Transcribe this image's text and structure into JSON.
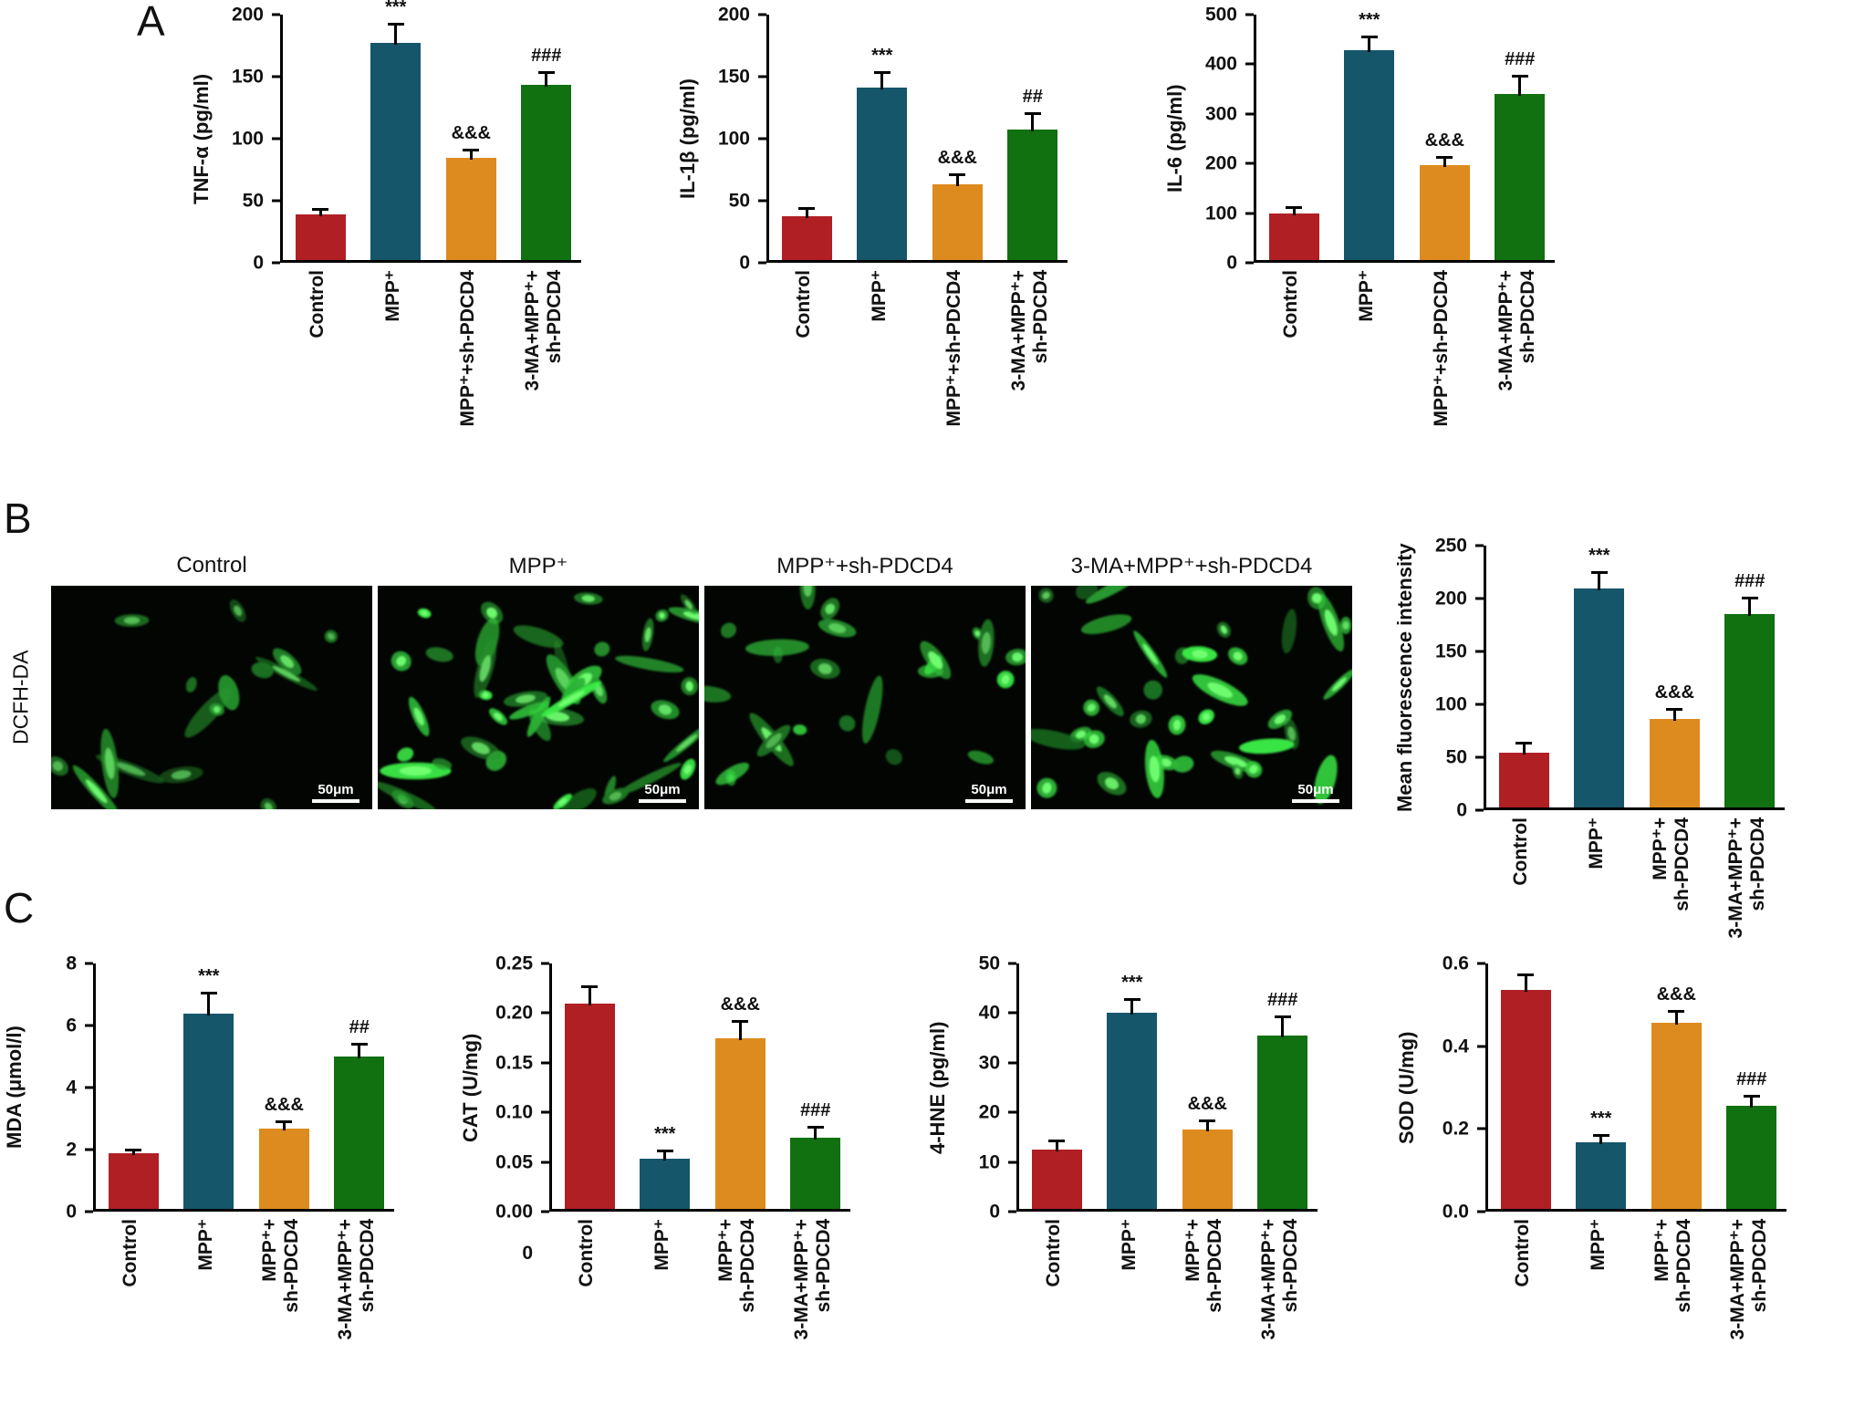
{
  "figure": {
    "panel_a_label": "A",
    "panel_b_label": "B",
    "panel_c_label": "C"
  },
  "panel_b": {
    "row_label": "DCFH-DA",
    "images": [
      {
        "label": "Control",
        "scale_bar": "50μm",
        "density": "sparse"
      },
      {
        "label": "MPP⁺",
        "scale_bar": "50μm",
        "density": "dense"
      },
      {
        "label": "MPP⁺+sh-PDCD4",
        "scale_bar": "50μm",
        "density": "moderate"
      },
      {
        "label": "3-MA+MPP⁺+sh-PDCD4",
        "scale_bar": "50μm",
        "density": "dense"
      }
    ]
  },
  "bar_colors": [
    "#b01f24",
    "#15566b",
    "#dd8b1e",
    "#11700f"
  ],
  "chart_data": [
    {
      "id": "tnf-alpha",
      "panel": "A",
      "type": "bar",
      "ylabel": "TNF-α (pg/ml)",
      "ymax": 200,
      "yticks": [
        "0",
        "50",
        "100",
        "150",
        "200"
      ],
      "categories": [
        "Control",
        "MPP⁺",
        "MPP⁺+sh-PDCD4",
        "3-MA+MPP⁺+\nsh-PDCD4"
      ],
      "values": [
        37,
        175,
        82,
        141
      ],
      "errors": [
        5,
        16,
        8,
        11
      ],
      "sig": [
        "",
        "***",
        "&&&",
        "###"
      ]
    },
    {
      "id": "il-1beta",
      "panel": "A",
      "type": "bar",
      "ylabel": "IL-1β (pg/ml)",
      "ymax": 200,
      "yticks": [
        "0",
        "50",
        "100",
        "150",
        "200"
      ],
      "categories": [
        "Control",
        "MPP⁺",
        "MPP⁺+sh-PDCD4",
        "3-MA+MPP⁺+\nsh-PDCD4"
      ],
      "values": [
        35,
        139,
        61,
        105
      ],
      "errors": [
        8,
        13,
        9,
        14
      ],
      "sig": [
        "",
        "***",
        "&&&",
        "##"
      ]
    },
    {
      "id": "il-6",
      "panel": "A",
      "type": "bar",
      "ylabel": "IL-6 (pg/ml)",
      "ymax": 500,
      "yticks": [
        "0",
        "100",
        "200",
        "300",
        "400",
        "500"
      ],
      "categories": [
        "Control",
        "MPP⁺",
        "MPP⁺+sh-PDCD4",
        "3-MA+MPP⁺+\nsh-PDCD4"
      ],
      "values": [
        93,
        422,
        192,
        335
      ],
      "errors": [
        15,
        30,
        18,
        38
      ],
      "sig": [
        "",
        "***",
        "&&&",
        "###"
      ]
    },
    {
      "id": "ros-mean-fluorescence",
      "panel": "B",
      "type": "bar",
      "ylabel": "Mean fluorescence intensity",
      "ymax": 250,
      "yticks": [
        "0",
        "50",
        "100",
        "150",
        "200",
        "250"
      ],
      "categories": [
        "Control",
        "MPP⁺",
        "MPP⁺+\nsh-PDCD4",
        "3-MA+MPP⁺+\nsh-PDCD4"
      ],
      "values": [
        52,
        207,
        84,
        183
      ],
      "errors": [
        10,
        16,
        10,
        16
      ],
      "sig": [
        "",
        "***",
        "&&&",
        "###"
      ]
    },
    {
      "id": "mda",
      "panel": "C",
      "type": "bar",
      "ylabel": "MDA (μmol/l)",
      "ymax": 8,
      "yticks": [
        "0",
        "2",
        "4",
        "6",
        "8"
      ],
      "categories": [
        "Control",
        "MPP⁺",
        "MPP⁺+\nsh-PDCD4",
        "3-MA+MPP⁺+\nsh-PDCD4"
      ],
      "values": [
        1.8,
        6.3,
        2.6,
        4.9
      ],
      "errors": [
        0.15,
        0.7,
        0.25,
        0.45
      ],
      "sig": [
        "",
        "***",
        "&&&",
        "##"
      ]
    },
    {
      "id": "cat",
      "panel": "C",
      "type": "bar",
      "ylabel": "CAT (U/mg)",
      "ymax": 0.25,
      "yticks": [
        "0.00",
        "0.05",
        "0.10",
        "0.15",
        "0.20",
        "0.25"
      ],
      "sub_label": "0",
      "categories": [
        "Control",
        "MPP⁺",
        "MPP⁺+\nsh-PDCD4",
        "3-MA+MPP⁺+\nsh-PDCD4"
      ],
      "values": [
        0.207,
        0.051,
        0.172,
        0.072
      ],
      "errors": [
        0.018,
        0.009,
        0.018,
        0.012
      ],
      "sig": [
        "",
        "***",
        "&&&",
        "###"
      ]
    },
    {
      "id": "4-hne",
      "panel": "C",
      "type": "bar",
      "ylabel": "4-HNE (pg/ml)",
      "ymax": 50,
      "yticks": [
        "0",
        "10",
        "20",
        "30",
        "40",
        "50"
      ],
      "categories": [
        "Control",
        "MPP⁺",
        "MPP⁺+\nsh-PDCD4",
        "3-MA+MPP⁺+\nsh-PDCD4"
      ],
      "values": [
        12,
        39.5,
        16,
        35
      ],
      "errors": [
        2,
        3,
        2,
        4
      ],
      "sig": [
        "",
        "***",
        "&&&",
        "###"
      ]
    },
    {
      "id": "sod",
      "panel": "C",
      "type": "bar",
      "ylabel": "SOD (U/mg)",
      "ymax": 0.6,
      "yticks": [
        "0.0",
        "0.2",
        "0.4",
        "0.6"
      ],
      "categories": [
        "Control",
        "MPP⁺",
        "MPP⁺+\nsh-PDCD4",
        "3-MA+MPP⁺+\nsh-PDCD4"
      ],
      "values": [
        0.53,
        0.16,
        0.45,
        0.25
      ],
      "errors": [
        0.04,
        0.02,
        0.03,
        0.025
      ],
      "sig": [
        "",
        "***",
        "&&&",
        "###"
      ]
    }
  ]
}
